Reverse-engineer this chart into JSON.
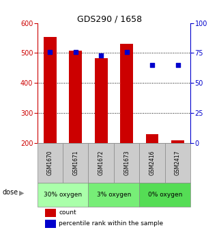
{
  "title": "GDS290 / 1658",
  "samples": [
    "GSM1670",
    "GSM1671",
    "GSM1672",
    "GSM1673",
    "GSM2416",
    "GSM2417"
  ],
  "bar_values": [
    554,
    507,
    483,
    530,
    229,
    208
  ],
  "bar_bottom": 200,
  "percentile_values": [
    76,
    76,
    73,
    76,
    65,
    65
  ],
  "bar_color": "#cc0000",
  "percentile_color": "#0000cc",
  "ylim_left": [
    200,
    600
  ],
  "ylim_right": [
    0,
    100
  ],
  "yticks_left": [
    200,
    300,
    400,
    500,
    600
  ],
  "yticks_right": [
    0,
    25,
    50,
    75,
    100
  ],
  "dose_groups": [
    {
      "label": "30% oxygen",
      "start": 0,
      "end": 2,
      "color": "#aaffaa"
    },
    {
      "label": "3% oxygen",
      "start": 2,
      "end": 4,
      "color": "#77ee77"
    },
    {
      "label": "0% oxygen",
      "start": 4,
      "end": 6,
      "color": "#55dd55"
    }
  ],
  "dose_label": "dose",
  "legend_count_label": "count",
  "legend_pct_label": "percentile rank within the sample",
  "grid_color": "#000000",
  "bar_width": 0.5,
  "sample_box_color": "#cccccc",
  "ylabel_left_color": "#cc0000",
  "ylabel_right_color": "#0000cc"
}
